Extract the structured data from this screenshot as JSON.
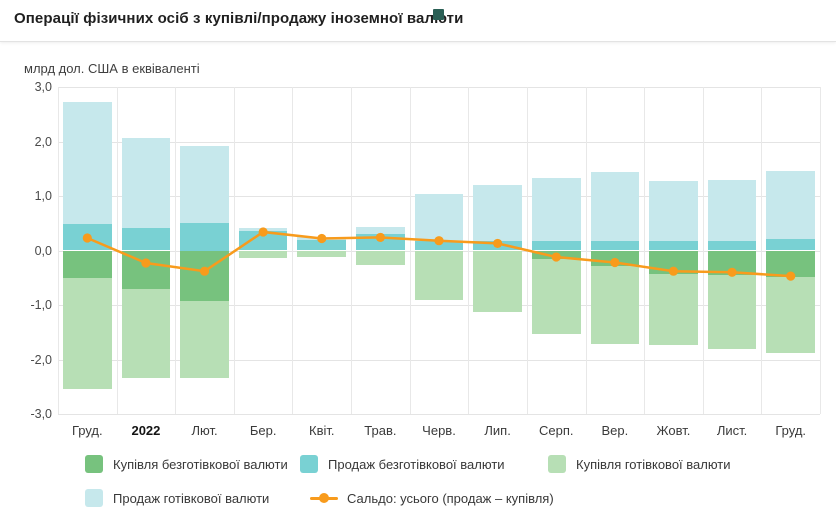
{
  "header": {
    "title": "Операції фізичних осіб з купівлі/продажу іноземної валюти"
  },
  "chart_data": {
    "type": "bar",
    "subtype": "stacked-bars-with-line",
    "title": "Операції фізичних осіб з купівлі/продажу іноземної валюти",
    "unit_label": "млрд дол. США в еквіваленті",
    "categories": [
      "Груд.",
      "2022",
      "Лют.",
      "Бер.",
      "Квіт.",
      "Трав.",
      "Черв.",
      "Лип.",
      "Серп.",
      "Вер.",
      "Жовт.",
      "Лист.",
      "Груд."
    ],
    "bold_category_index": 1,
    "ylim": [
      -3,
      3
    ],
    "y_ticks": [
      {
        "value": 3,
        "label": "3,0"
      },
      {
        "value": 2,
        "label": "2,0"
      },
      {
        "value": 1,
        "label": "1,0"
      },
      {
        "value": 0,
        "label": "0,0"
      },
      {
        "value": -1,
        "label": "-1,0"
      },
      {
        "value": -2,
        "label": "-2,0"
      },
      {
        "value": -3,
        "label": "-3,0"
      }
    ],
    "grid": true,
    "legend_position": "bottom",
    "series": [
      {
        "name": "Купівля безготівкової валюти",
        "type": "bar",
        "stack": "neg",
        "color": "#77c27e",
        "values": [
          -0.51,
          -0.7,
          -0.92,
          0,
          0,
          0,
          0,
          0,
          -0.15,
          -0.28,
          -0.43,
          -0.45,
          -0.49
        ]
      },
      {
        "name": "Продаж безготівкової валюти",
        "type": "bar",
        "stack": "pos",
        "color": "#79d1d3",
        "values": [
          0.48,
          0.42,
          0.5,
          0.35,
          0.2,
          0.3,
          0.18,
          0.17,
          0.17,
          0.17,
          0.17,
          0.17,
          0.22
        ]
      },
      {
        "name": "Купівля готівкової валюти",
        "type": "bar",
        "stack": "neg",
        "color": "#b7dfb5",
        "values": [
          -2.04,
          -1.64,
          -1.42,
          -0.14,
          -0.12,
          -0.26,
          -0.9,
          -1.13,
          -1.38,
          -1.43,
          -1.31,
          -1.35,
          -1.39
        ]
      },
      {
        "name": "Продаж готівкової валюти",
        "type": "bar",
        "stack": "pos",
        "color": "#c6e8ec",
        "values": [
          2.25,
          1.65,
          1.42,
          0.06,
          0.04,
          0.13,
          0.86,
          1.04,
          1.16,
          1.27,
          1.11,
          1.13,
          1.23
        ]
      },
      {
        "name": "Сальдо: усього (продаж – купівля)",
        "type": "line",
        "color": "#f89b1c",
        "values": [
          0.23,
          -0.23,
          -0.38,
          0.34,
          0.22,
          0.24,
          0.18,
          0.13,
          -0.12,
          -0.22,
          -0.38,
          -0.4,
          -0.47
        ]
      }
    ],
    "legend_rows": [
      [
        0,
        1,
        2
      ],
      [
        3,
        4
      ]
    ]
  }
}
